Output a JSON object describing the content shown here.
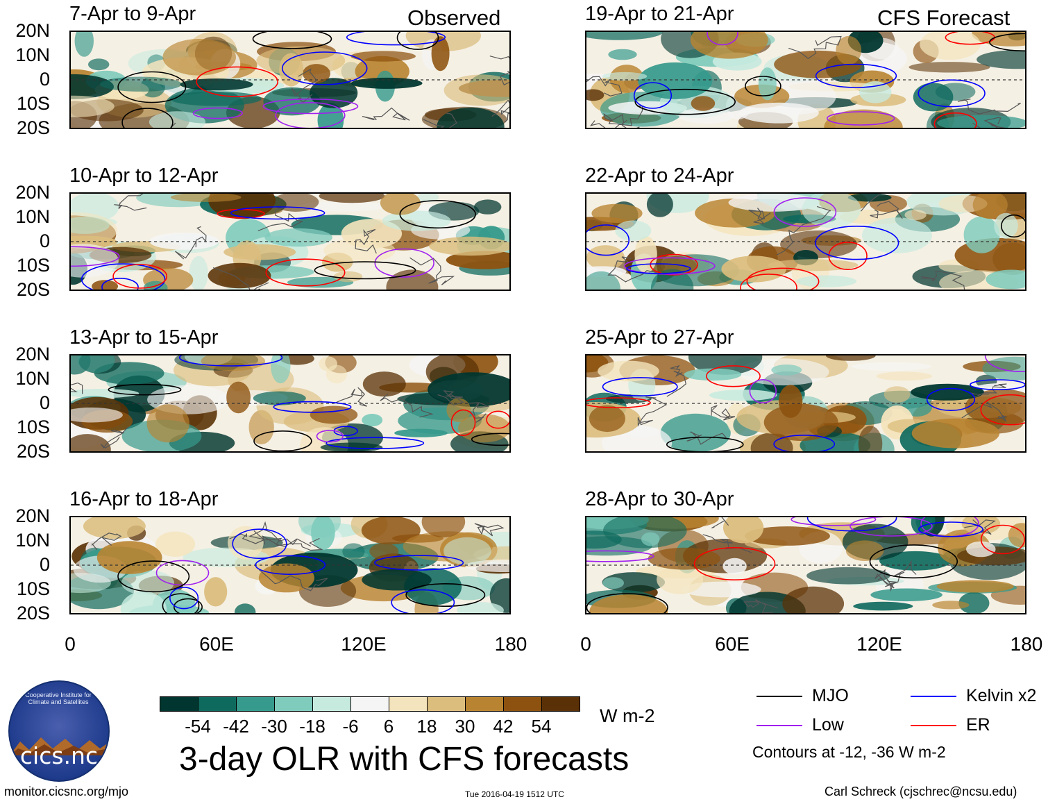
{
  "header": {
    "observed_label": "Observed",
    "forecast_label": "CFS Forecast"
  },
  "panels": [
    {
      "title": "7-Apr to 9-Apr",
      "group": "observed"
    },
    {
      "title": "10-Apr to 12-Apr",
      "group": "observed"
    },
    {
      "title": "13-Apr to 15-Apr",
      "group": "observed"
    },
    {
      "title": "16-Apr to 18-Apr",
      "group": "observed"
    },
    {
      "title": "19-Apr to 21-Apr",
      "group": "forecast"
    },
    {
      "title": "22-Apr to 24-Apr",
      "group": "forecast"
    },
    {
      "title": "25-Apr to 27-Apr",
      "group": "forecast"
    },
    {
      "title": "28-Apr to 30-Apr",
      "group": "forecast"
    }
  ],
  "axes": {
    "y_ticks": [
      "20N",
      "10N",
      "0",
      "10S",
      "20S"
    ],
    "x_ticks": [
      "0",
      "60E",
      "120E",
      "180"
    ]
  },
  "colorbar": {
    "labels": [
      "-54",
      "-42",
      "-30",
      "-18",
      "-6",
      "6",
      "18",
      "30",
      "42",
      "54"
    ],
    "colors": [
      "#00362f",
      "#0f6a5e",
      "#369a8c",
      "#7fcbbc",
      "#c7eadf",
      "#f5f5f5",
      "#f4e4bd",
      "#dbbd7d",
      "#b98431",
      "#8d520f",
      "#5a3106"
    ],
    "unit": "W m-2"
  },
  "title": "3-day OLR with CFS forecasts",
  "legend": {
    "items": [
      {
        "label": "MJO",
        "color": "#000000"
      },
      {
        "label": "Kelvin x2",
        "color": "#0000ff"
      },
      {
        "label": "Low",
        "color": "#a020f0"
      },
      {
        "label": "ER",
        "color": "#ff0000"
      }
    ],
    "note": "Contours at -12, -36 W m-2"
  },
  "footer": {
    "left": "monitor.cicsnc.org/mjo",
    "center": "Tue 2016-04-19 1512 UTC",
    "right": "Carl Schreck (cjschrec@ncsu.edu)"
  },
  "logo": {
    "name": "cics.nc",
    "arc_text": "Cooperative Institute for Climate and Satellites"
  },
  "chart_data": {
    "type": "heatmap",
    "variable": "OLR anomaly",
    "unit": "W m-2",
    "x_range": [
      0,
      180
    ],
    "y_range": [
      -20,
      20
    ],
    "contour_levels": [
      -12,
      -36
    ],
    "series": [
      "MJO",
      "Kelvin x2",
      "Low",
      "ER"
    ],
    "panels": [
      "7-Apr to 9-Apr",
      "10-Apr to 12-Apr",
      "13-Apr to 15-Apr",
      "16-Apr to 18-Apr",
      "19-Apr to 21-Apr",
      "22-Apr to 24-Apr",
      "25-Apr to 27-Apr",
      "28-Apr to 30-Apr"
    ]
  }
}
